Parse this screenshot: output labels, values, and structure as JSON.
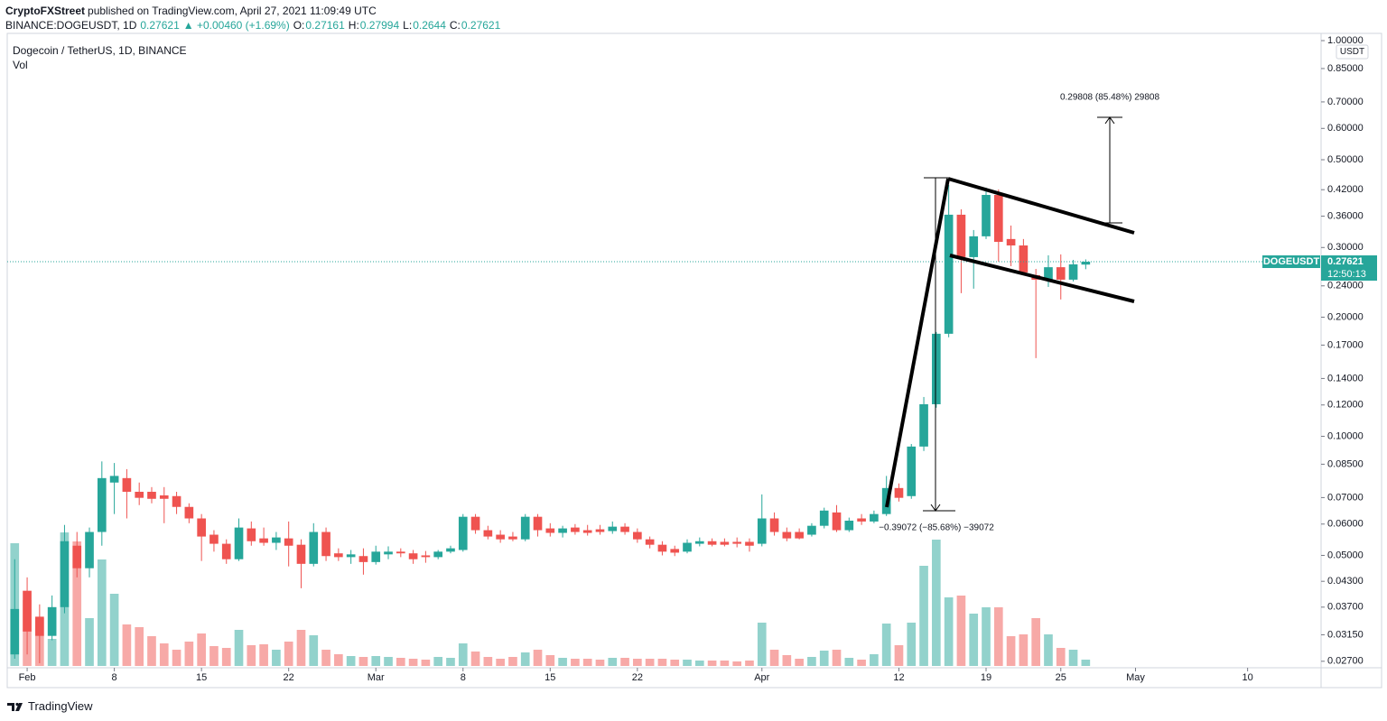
{
  "header": {
    "publisher": "CryptoFXStreet",
    "published": "published on TradingView.com, April 27, 2021 11:09:49 UTC"
  },
  "symbol_line": {
    "symbol": "BINANCE:DOGEUSDT, 1D",
    "change": "▲ +0.00460 (+1.69%)",
    "ohlc_labels": [
      "O:",
      "H:",
      "L:",
      "C:"
    ]
  },
  "footer": {
    "brand": "TradingView"
  },
  "chart_data": {
    "type": "candlestick",
    "title": "Dogecoin / TetherUS, 1D, BINANCE",
    "volume_label": "Vol",
    "symbol": "DOGEUSDT",
    "countdown": "12:50:13",
    "currency": "USDT",
    "annotations": [
      "0.29808 (85.48%) 29808",
      "−0.39072 (−85.68%) −39072"
    ],
    "up_color": "#26a69a",
    "down_color": "#ef5350",
    "log_scale": true,
    "grid": false,
    "x": [
      31,
      32,
      33,
      34,
      35,
      36,
      37,
      38,
      39,
      40,
      41,
      42,
      43,
      44,
      45,
      46,
      47,
      48,
      49,
      50,
      51,
      52,
      53,
      54,
      55,
      56,
      57,
      58,
      59,
      60,
      61,
      62,
      63,
      64,
      65,
      66,
      67,
      68,
      69,
      70,
      71,
      72,
      73,
      74,
      75,
      76,
      77,
      78,
      79,
      80,
      81,
      82,
      83,
      84,
      85,
      86,
      87,
      88,
      89,
      90,
      91,
      92,
      93,
      94,
      95,
      96,
      97,
      98,
      99,
      100,
      101,
      102,
      103,
      104,
      105,
      106,
      107,
      108,
      109,
      110,
      111,
      112,
      113,
      114,
      115,
      116,
      117
    ],
    "open": [
      0.0281,
      0.0407,
      0.035,
      0.0313,
      0.037,
      0.0529,
      0.0464,
      0.0573,
      0.0764,
      0.0784,
      0.0724,
      0.0724,
      0.0709,
      0.0706,
      0.0663,
      0.062,
      0.0564,
      0.0535,
      0.0489,
      0.0585,
      0.0552,
      0.0538,
      0.0552,
      0.0532,
      0.0476,
      0.0573,
      0.0506,
      0.0495,
      0.0498,
      0.0481,
      0.0503,
      0.0511,
      0.0506,
      0.05,
      0.0495,
      0.0511,
      0.0516,
      0.0626,
      0.0579,
      0.0564,
      0.0558,
      0.0549,
      0.0626,
      0.0585,
      0.057,
      0.0588,
      0.0579,
      0.0582,
      0.0576,
      0.0591,
      0.0573,
      0.0549,
      0.0532,
      0.0519,
      0.0511,
      0.0535,
      0.0543,
      0.0541,
      0.0541,
      0.0541,
      0.0535,
      0.062,
      0.0573,
      0.0573,
      0.0564,
      0.0594,
      0.0642,
      0.0579,
      0.062,
      0.0609,
      0.0636,
      0.074,
      0.0706,
      0.0942,
      0.1205,
      0.1816,
      0.3631,
      0.2837,
      0.3202,
      0.4074,
      0.3152,
      0.3036,
      0.2553,
      0.2488,
      0.2675,
      0.2488,
      0.27161
    ],
    "high": [
      0.0489,
      0.044,
      0.0376,
      0.0396,
      0.0597,
      0.0573,
      0.0588,
      0.0864,
      0.0856,
      0.0826,
      0.0764,
      0.0744,
      0.0744,
      0.0724,
      0.0677,
      0.0636,
      0.0579,
      0.0549,
      0.062,
      0.0609,
      0.0588,
      0.0573,
      0.0609,
      0.0549,
      0.0603,
      0.0588,
      0.0521,
      0.0516,
      0.0521,
      0.0529,
      0.0527,
      0.0521,
      0.0516,
      0.0513,
      0.0516,
      0.0529,
      0.0636,
      0.0636,
      0.0594,
      0.0579,
      0.0573,
      0.0636,
      0.0636,
      0.0603,
      0.0594,
      0.06,
      0.0597,
      0.0597,
      0.0609,
      0.0603,
      0.0585,
      0.0558,
      0.0543,
      0.0529,
      0.0549,
      0.0555,
      0.0552,
      0.0552,
      0.0555,
      0.0552,
      0.0713,
      0.0642,
      0.0588,
      0.0585,
      0.0603,
      0.066,
      0.067,
      0.0623,
      0.0636,
      0.0649,
      0.0794,
      0.076,
      0.0956,
      0.1257,
      0.1835,
      0.4316,
      0.3746,
      0.3321,
      0.425,
      0.4206,
      0.3409,
      0.3152,
      0.2649,
      0.2867,
      0.2882,
      0.2791,
      0.27994
    ],
    "low": [
      0.0274,
      0.0281,
      0.0267,
      0.0305,
      0.0357,
      0.044,
      0.044,
      0.0529,
      0.0636,
      0.062,
      0.067,
      0.0677,
      0.0603,
      0.0636,
      0.0603,
      0.0484,
      0.0511,
      0.0476,
      0.0484,
      0.0529,
      0.0529,
      0.0516,
      0.0469,
      0.0413,
      0.0469,
      0.0484,
      0.0484,
      0.0476,
      0.0447,
      0.0474,
      0.0489,
      0.0495,
      0.0476,
      0.0479,
      0.0489,
      0.0506,
      0.0511,
      0.0567,
      0.0549,
      0.0538,
      0.0543,
      0.0543,
      0.0558,
      0.0558,
      0.0555,
      0.0564,
      0.0561,
      0.0564,
      0.0567,
      0.0564,
      0.0538,
      0.0521,
      0.05,
      0.0498,
      0.0506,
      0.0527,
      0.0527,
      0.0527,
      0.0524,
      0.0511,
      0.0527,
      0.0561,
      0.0543,
      0.0549,
      0.0558,
      0.0585,
      0.0573,
      0.0573,
      0.0597,
      0.0603,
      0.0629,
      0.0684,
      0.0695,
      0.0918,
      0.1181,
      0.1779,
      0.23,
      0.2361,
      0.3152,
      0.2763,
      0.2691,
      0.2553,
      0.1576,
      0.2385,
      0.2217,
      0.2463,
      0.2644
    ],
    "close": [
      0.0366,
      0.0321,
      0.0313,
      0.037,
      0.0543,
      0.0464,
      0.0573,
      0.0784,
      0.0794,
      0.0724,
      0.0699,
      0.0695,
      0.0695,
      0.0663,
      0.062,
      0.0558,
      0.0535,
      0.0489,
      0.0588,
      0.0543,
      0.0538,
      0.0555,
      0.0529,
      0.0476,
      0.0573,
      0.0498,
      0.0495,
      0.0503,
      0.0481,
      0.0511,
      0.0511,
      0.0506,
      0.0489,
      0.0495,
      0.0511,
      0.0521,
      0.0626,
      0.0579,
      0.0558,
      0.0549,
      0.0549,
      0.0626,
      0.0579,
      0.057,
      0.0585,
      0.0573,
      0.057,
      0.0573,
      0.0591,
      0.0573,
      0.0549,
      0.0532,
      0.0511,
      0.0508,
      0.0538,
      0.0543,
      0.0532,
      0.0532,
      0.0535,
      0.0529,
      0.062,
      0.0573,
      0.0552,
      0.0552,
      0.0594,
      0.0649,
      0.0579,
      0.0612,
      0.0609,
      0.0636,
      0.074,
      0.0699,
      0.0942,
      0.1205,
      0.1816,
      0.3631,
      0.2837,
      0.3202,
      0.4074,
      0.31,
      0.3036,
      0.2595,
      0.2488,
      0.2675,
      0.2488,
      0.272,
      0.27621
    ],
    "volume": [
      136,
      73,
      53,
      30,
      148,
      138,
      53,
      118,
      80,
      46,
      43,
      33,
      25,
      18,
      27,
      36,
      22,
      20,
      40,
      23,
      24,
      18,
      27,
      40,
      34,
      18,
      13,
      11,
      10,
      11,
      10,
      9,
      8,
      7,
      10,
      9,
      25,
      16,
      10,
      8,
      10,
      15,
      18,
      12,
      9,
      8,
      8,
      7,
      9,
      9,
      8,
      8,
      8,
      7,
      7,
      6,
      6,
      6,
      5,
      6,
      48,
      18,
      12,
      8,
      10,
      17,
      18,
      9,
      7,
      13,
      47,
      23,
      48,
      111,
      140,
      76,
      78,
      58,
      65,
      65,
      33,
      35,
      53,
      35,
      20,
      18,
      7
    ],
    "xlim": [
      30.4,
      135.9
    ],
    "xticks": [
      {
        "value": 32,
        "label": "Feb"
      },
      {
        "value": 39,
        "label": "8"
      },
      {
        "value": 46,
        "label": "15"
      },
      {
        "value": 53,
        "label": "22"
      },
      {
        "value": 60,
        "label": "Mar"
      },
      {
        "value": 67,
        "label": "8"
      },
      {
        "value": 74,
        "label": "15"
      },
      {
        "value": 81,
        "label": "22"
      },
      {
        "value": 91,
        "label": "Apr"
      },
      {
        "value": 102,
        "label": "12"
      },
      {
        "value": 109,
        "label": "19"
      },
      {
        "value": 115,
        "label": "25"
      },
      {
        "value": 121,
        "label": "May"
      },
      {
        "value": 130,
        "label": "10"
      }
    ],
    "ylim": [
      0.026,
      1.043
    ],
    "yticks": [
      {
        "value": 1,
        "label": "1.00000"
      },
      {
        "value": 0.85,
        "label": "0.85000"
      },
      {
        "value": 0.7,
        "label": "0.70000"
      },
      {
        "value": 0.6,
        "label": "0.60000"
      },
      {
        "value": 0.5,
        "label": "0.50000"
      },
      {
        "value": 0.42,
        "label": "0.42000"
      },
      {
        "value": 0.36,
        "label": "0.36000"
      },
      {
        "value": 0.3,
        "label": "0.30000"
      },
      {
        "value": 0.24,
        "label": "0.24000"
      },
      {
        "value": 0.2,
        "label": "0.20000"
      },
      {
        "value": 0.17,
        "label": "0.17000"
      },
      {
        "value": 0.14,
        "label": "0.14000"
      },
      {
        "value": 0.12,
        "label": "0.12000"
      },
      {
        "value": 0.1,
        "label": "0.10000"
      },
      {
        "value": 0.085,
        "label": "0.08500"
      },
      {
        "value": 0.07,
        "label": "0.07000"
      },
      {
        "value": 0.06,
        "label": "0.06000"
      },
      {
        "value": 0.05,
        "label": "0.05000"
      },
      {
        "value": 0.043,
        "label": "0.04300"
      },
      {
        "value": 0.037,
        "label": "0.03700"
      },
      {
        "value": 0.0315,
        "label": "0.03150"
      },
      {
        "value": 0.027,
        "label": "0.02700"
      }
    ]
  }
}
